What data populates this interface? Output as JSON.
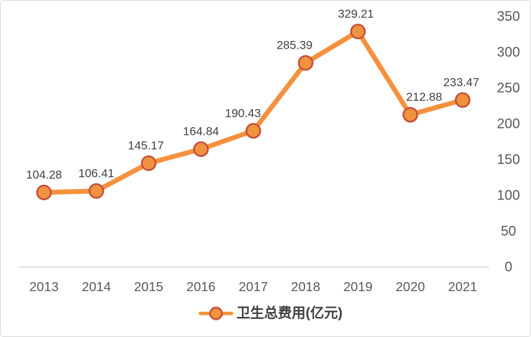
{
  "chart_data": {
    "type": "line",
    "title": "",
    "xlabel": "",
    "ylabel": "",
    "categories": [
      "2013",
      "2014",
      "2015",
      "2016",
      "2017",
      "2018",
      "2019",
      "2020",
      "2021"
    ],
    "series": [
      {
        "name": "卫生总费用(亿元)",
        "values": [
          104.28,
          106.41,
          145.17,
          164.84,
          190.43,
          285.39,
          329.21,
          212.88,
          233.47
        ],
        "data_labels": [
          "104.28",
          "106.41",
          "145.17",
          "164.84",
          "190.43",
          "285.39",
          "329.21",
          "212.88",
          "233.47"
        ]
      }
    ],
    "ylim": [
      0,
      350
    ],
    "y_ticks": [
      "0",
      "50",
      "100",
      "150",
      "200",
      "250",
      "300",
      "350"
    ],
    "y_axis_side": "right",
    "grid": false,
    "markers": true,
    "legend_position": "bottom-center",
    "label_offsets_x": [
      0,
      0,
      -4,
      0,
      -15,
      -16,
      -3,
      20,
      -2
    ]
  },
  "style": {
    "line_color": "#F5913E",
    "marker_fill": "#F0923E",
    "marker_border": "#C2503D",
    "axis_line_color": "#D9D9D9",
    "axis_label_color": "#595959",
    "data_label_color": "#404040",
    "legend_text_color": "#3F3F3F",
    "background": "#FFFFFF",
    "frame_border": "#D8D8D8"
  }
}
